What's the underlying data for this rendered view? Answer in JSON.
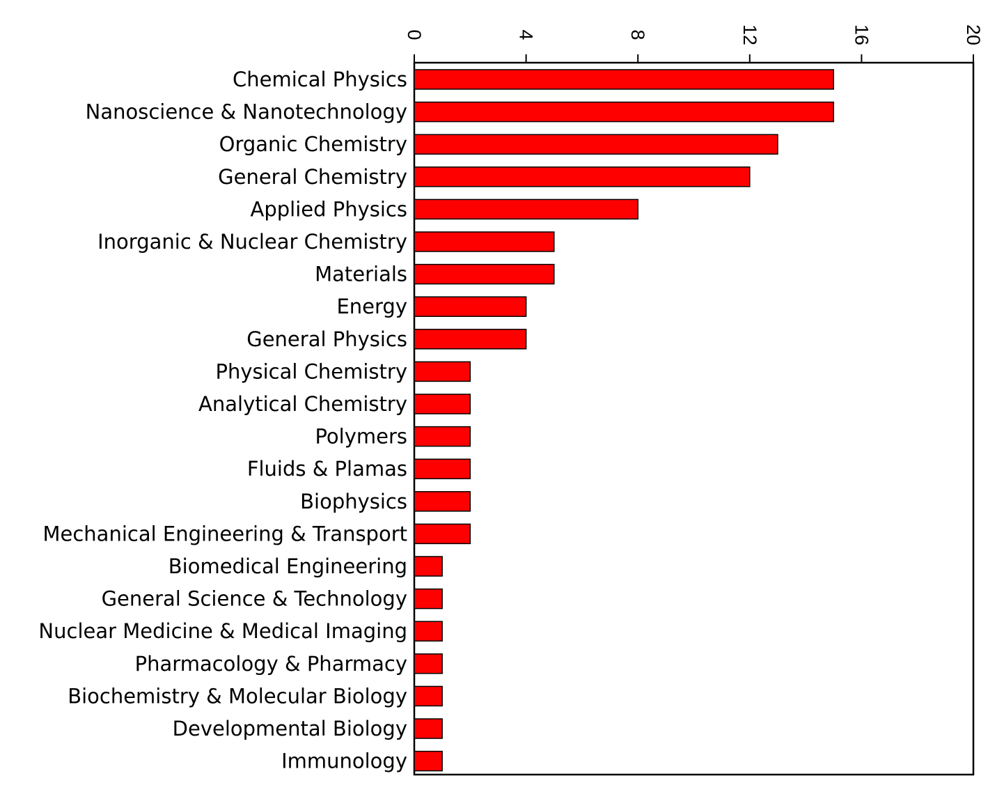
{
  "chart_data": {
    "type": "bar",
    "orientation": "horizontal",
    "categories": [
      "Chemical Physics",
      "Nanoscience & Nanotechnology",
      "Organic Chemistry",
      "General Chemistry",
      "Applied Physics",
      "Inorganic & Nuclear Chemistry",
      "Materials",
      "Energy",
      "General Physics",
      "Physical Chemistry",
      "Analytical Chemistry",
      "Polymers",
      "Fluids & Plamas",
      "Biophysics",
      "Mechanical Engineering & Transport",
      "Biomedical Engineering",
      "General Science & Technology",
      "Nuclear Medicine & Medical Imaging",
      "Pharmacology & Pharmacy",
      "Biochemistry & Molecular Biology",
      "Developmental Biology",
      "Immunology"
    ],
    "values": [
      15,
      15,
      13,
      12,
      8,
      5,
      5,
      4,
      4,
      2,
      2,
      2,
      2,
      2,
      2,
      1,
      1,
      1,
      1,
      1,
      1,
      1
    ],
    "xlim": [
      0,
      20
    ],
    "ticks": [
      "0",
      "4",
      "8",
      "12",
      "16",
      "20"
    ],
    "tick_label_rotation": "rotated 90° clockwise, above top axis",
    "axis_position": "top",
    "grid": false,
    "legend": "none",
    "bar_color": "#ff0000",
    "bar_edge_color": "#000000"
  }
}
